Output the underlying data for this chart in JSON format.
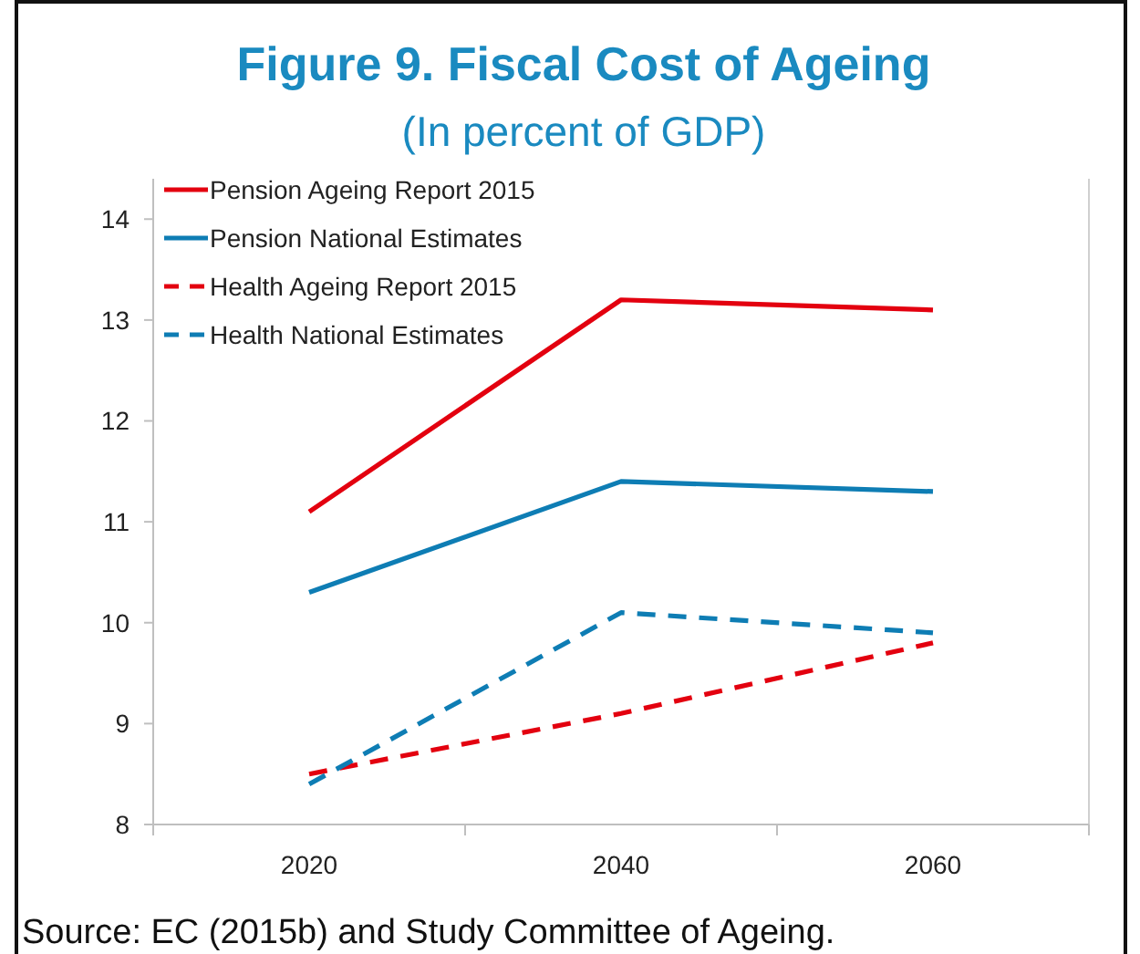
{
  "chart_data": {
    "type": "line",
    "title": "Figure 9. Fiscal Cost of Ageing",
    "subtitle": "(In percent of GDP)",
    "annotations": [
      "Source: EC (2015b) and Study Committee of Ageing."
    ],
    "categories": [
      "2020",
      "2040",
      "2060"
    ],
    "series": [
      {
        "name": "Pension Ageing Report 2015",
        "color": "#e3000f",
        "line_style": "solid",
        "values": [
          11.1,
          13.2,
          13.1
        ]
      },
      {
        "name": "Pension National Estimates",
        "color": "#0e7db4",
        "line_style": "solid",
        "values": [
          10.3,
          11.4,
          11.3
        ]
      },
      {
        "name": "Health Ageing Report 2015",
        "color": "#e3000f",
        "line_style": "dashed",
        "values": [
          8.5,
          9.1,
          9.8
        ]
      },
      {
        "name": "Health National Estimates",
        "color": "#0e7db4",
        "line_style": "dashed",
        "values": [
          8.4,
          10.1,
          9.9
        ]
      }
    ],
    "ylim": [
      8,
      14.4
    ],
    "yticks": [
      8,
      9,
      10,
      11,
      12,
      13,
      14
    ],
    "legend": "top left"
  }
}
